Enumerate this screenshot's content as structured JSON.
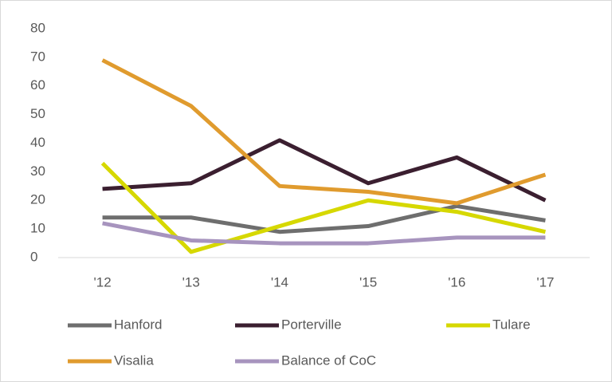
{
  "chart_data": {
    "type": "line",
    "categories": [
      "'12",
      "'13",
      "'14",
      "'15",
      "'16",
      "'17"
    ],
    "series": [
      {
        "name": "Hanford",
        "color": "#6e6e6e",
        "values": [
          14,
          14,
          9,
          11,
          18,
          13
        ]
      },
      {
        "name": "Porterville",
        "color": "#3b1f30",
        "values": [
          24,
          26,
          41,
          26,
          35,
          20
        ]
      },
      {
        "name": "Tulare",
        "color": "#d6d800",
        "values": [
          33,
          2,
          11,
          20,
          16,
          9
        ]
      },
      {
        "name": "Visalia",
        "color": "#e09b2e",
        "values": [
          69,
          53,
          25,
          23,
          19,
          29
        ]
      },
      {
        "name": "Balance of CoC",
        "color": "#a794be",
        "values": [
          12,
          6,
          5,
          5,
          7,
          7
        ]
      }
    ],
    "ylim": [
      0,
      80
    ],
    "yticks": [
      0,
      10,
      20,
      30,
      40,
      50,
      60,
      70,
      80
    ],
    "grid": false
  }
}
